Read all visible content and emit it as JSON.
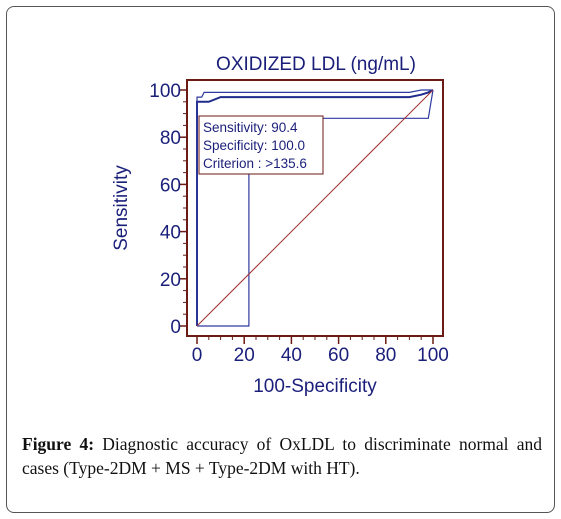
{
  "chart_data": {
    "type": "line",
    "title": "OXIDIZED LDL (ng/mL)",
    "xlabel": "100-Specificity",
    "ylabel": "Sensitivity",
    "xlim": [
      0,
      100
    ],
    "ylim": [
      0,
      100
    ],
    "x_ticks": [
      "0",
      "20",
      "40",
      "60",
      "80",
      "100"
    ],
    "y_ticks": [
      "0",
      "20",
      "40",
      "60",
      "80",
      "100"
    ],
    "series": [
      {
        "role": "roc-curve",
        "color": "#1f2a8a",
        "points": [
          [
            0,
            0
          ],
          [
            0,
            90.4
          ],
          [
            0,
            95
          ],
          [
            5,
            95
          ],
          [
            10,
            97
          ],
          [
            45,
            97
          ],
          [
            90,
            97
          ],
          [
            95,
            98
          ],
          [
            98,
            99
          ],
          [
            100,
            100
          ]
        ]
      },
      {
        "role": "confidence-upper",
        "color": "#2f3aa0",
        "points": [
          [
            0,
            0
          ],
          [
            0,
            97
          ],
          [
            2,
            97
          ],
          [
            3,
            99
          ],
          [
            90,
            99
          ],
          [
            95,
            100
          ],
          [
            100,
            100
          ]
        ]
      },
      {
        "role": "confidence-lower",
        "color": "#2f3aa0",
        "points": [
          [
            0,
            0
          ],
          [
            22,
            0
          ],
          [
            22,
            88
          ],
          [
            98,
            88
          ],
          [
            100,
            100
          ]
        ]
      },
      {
        "role": "reference-line",
        "color": "#a03030",
        "points": [
          [
            0,
            0
          ],
          [
            100,
            100
          ]
        ]
      }
    ],
    "annotation": {
      "lines": [
        "Sensitivity: 90.4",
        "Specificity: 100.0",
        "Criterion : >135.6"
      ]
    },
    "colors": {
      "axes": "#6b1a14",
      "labels": "#1a1f7a",
      "curve": "#1f2a8a",
      "diagonal": "#a03030"
    }
  },
  "caption": {
    "label": "Figure 4:",
    "text": " Diagnostic accuracy of OxLDL to discriminate normal and cases (Type-2DM + MS + Type-2DM with HT)."
  }
}
